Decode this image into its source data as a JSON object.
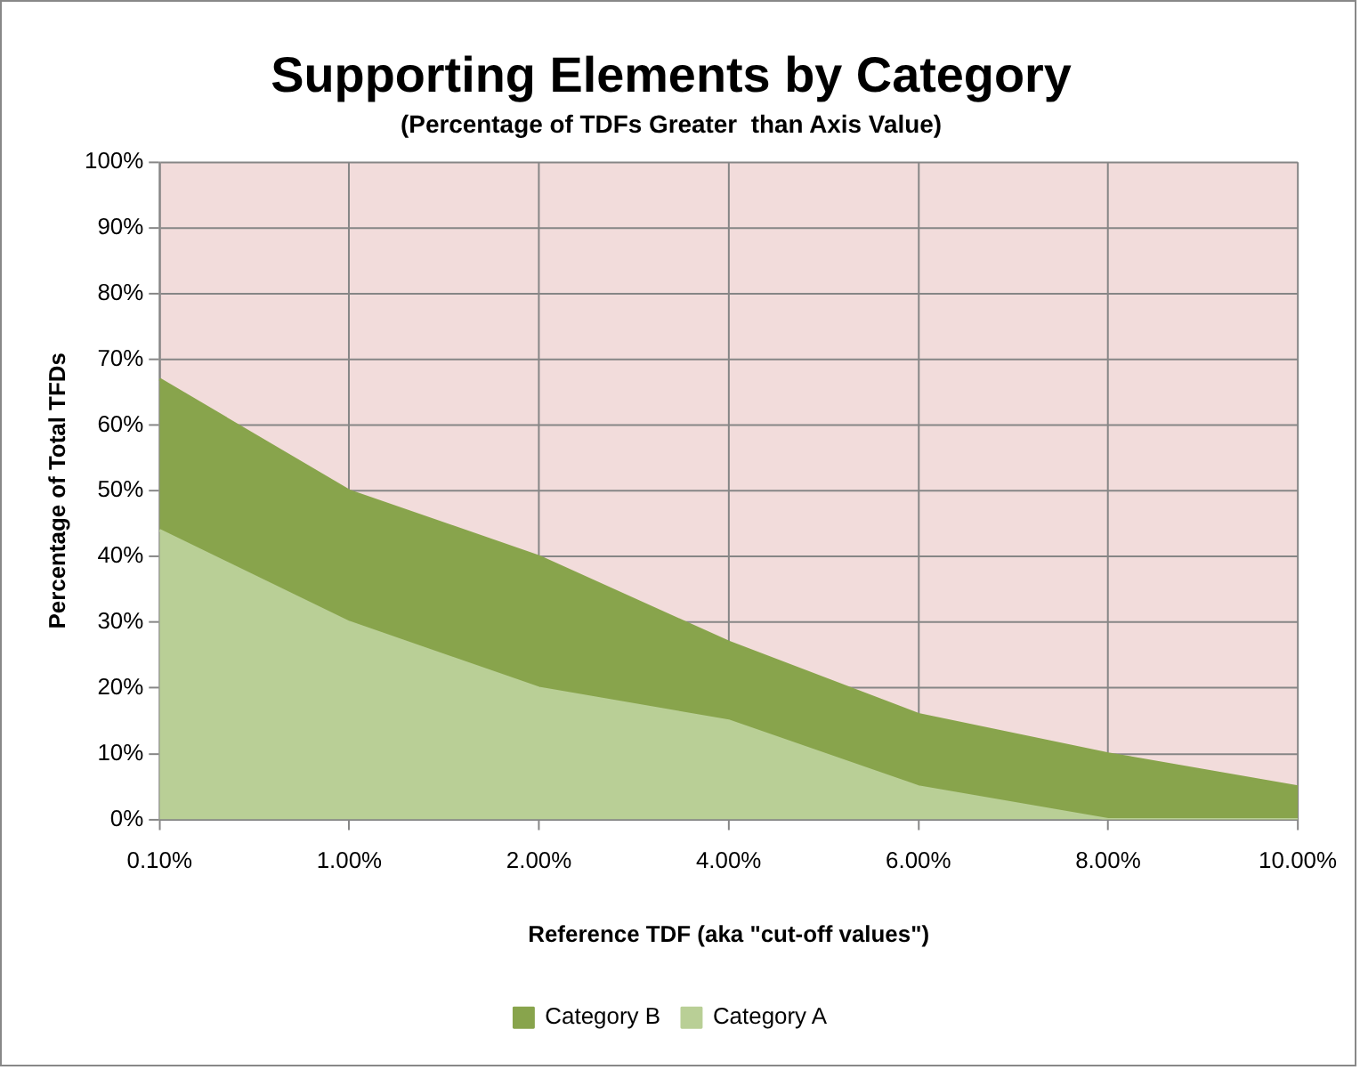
{
  "chart_data": {
    "type": "area",
    "title": "Supporting Elements by Category",
    "subtitle": "(Percentage of TDFs Greater  than Axis Value)",
    "xlabel": "Reference TDF (aka \"cut-off values\")",
    "ylabel": "Percentage of Total TFDs",
    "categories": [
      "0.10%",
      "1.00%",
      "2.00%",
      "4.00%",
      "6.00%",
      "8.00%",
      "10.00%"
    ],
    "stacked": true,
    "series": [
      {
        "name": "Category A",
        "color": "#b9cf96",
        "values": [
          44,
          30,
          20,
          15,
          5,
          0,
          0
        ]
      },
      {
        "name": "Category B",
        "color": "#88a44c",
        "values": [
          23,
          20,
          20,
          12,
          11,
          10,
          5
        ]
      }
    ],
    "ylim": [
      0,
      100
    ],
    "yticks": [
      {
        "value": 0,
        "label": "0%"
      },
      {
        "value": 10,
        "label": "10%"
      },
      {
        "value": 20,
        "label": "20%"
      },
      {
        "value": 30,
        "label": "30%"
      },
      {
        "value": 40,
        "label": "40%"
      },
      {
        "value": 50,
        "label": "50%"
      },
      {
        "value": 60,
        "label": "60%"
      },
      {
        "value": 70,
        "label": "70%"
      },
      {
        "value": 80,
        "label": "80%"
      },
      {
        "value": 90,
        "label": "90%"
      },
      {
        "value": 100,
        "label": "100%"
      }
    ],
    "grid": true,
    "legend": "bottom"
  }
}
